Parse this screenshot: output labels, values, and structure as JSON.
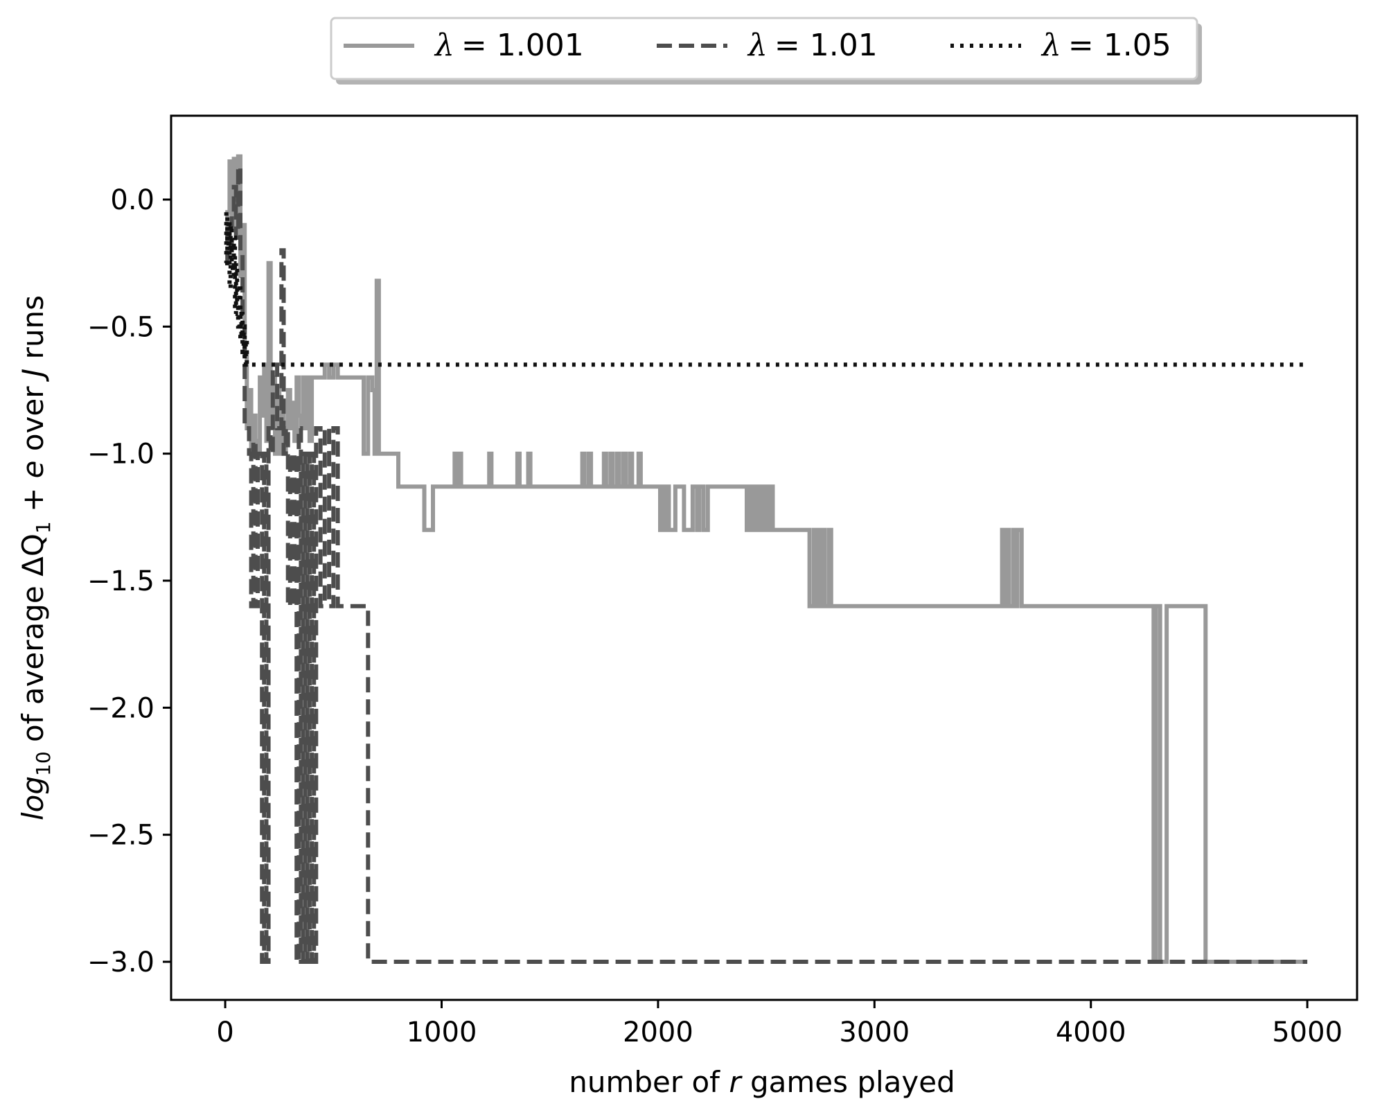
{
  "chart_data": {
    "type": "line",
    "xlabel": "number of r games played",
    "xlabel_parts": [
      "number of ",
      "r",
      " games played"
    ],
    "ylabel": "log10 of average ΔQ1 + e over J runs",
    "ylabel_parts": {
      "log": "log",
      "sub10": "10",
      "mid": " of average ",
      "dq": "ΔQ",
      "sub1": "1",
      "plus": " + ",
      "e": "e",
      "over": " over ",
      "J": "J",
      "runs": " runs"
    },
    "xlim": [
      -250,
      5230
    ],
    "ylim": [
      -3.15,
      0.33
    ],
    "xticks": [
      0,
      1000,
      2000,
      3000,
      4000,
      5000
    ],
    "yticks": [
      0.0,
      -0.5,
      -1.0,
      -1.5,
      -2.0,
      -2.5,
      -3.0
    ],
    "ytick_labels": [
      "0.0",
      "−0.5",
      "−1.0",
      "−1.5",
      "−2.0",
      "−2.5",
      "−3.0"
    ],
    "grid": false,
    "legend_placement": "top-center-outside",
    "series": [
      {
        "name": "λ = 1.001",
        "lambda_symbol": "λ",
        "lambda_value": "= 1.001",
        "color": "#999999",
        "style": "solid",
        "x": [
          0,
          10,
          20,
          30,
          40,
          50,
          60,
          70,
          80,
          90,
          100,
          110,
          120,
          130,
          140,
          150,
          160,
          170,
          180,
          190,
          200,
          210,
          220,
          230,
          240,
          250,
          260,
          270,
          280,
          290,
          300,
          310,
          320,
          330,
          340,
          350,
          360,
          370,
          380,
          390,
          400,
          420,
          440,
          460,
          480,
          500,
          520,
          540,
          560,
          600,
          640,
          660,
          680,
          690,
          700,
          710,
          720,
          740,
          760,
          780,
          800,
          820,
          840,
          880,
          920,
          940,
          960,
          980,
          1000,
          1060,
          1070,
          1080,
          1090,
          1100,
          1220,
          1230,
          1240,
          1350,
          1360,
          1400,
          1410,
          1650,
          1660,
          1680,
          1690,
          1750,
          1760,
          1780,
          1790,
          1810,
          1820,
          1840,
          1850,
          1870,
          1880,
          1910,
          1920,
          1980,
          2000,
          2010,
          2020,
          2030,
          2040,
          2050,
          2060,
          2080,
          2120,
          2160,
          2180,
          2190,
          2210,
          2220,
          2230,
          2300,
          2410,
          2420,
          2430,
          2440,
          2450,
          2460,
          2470,
          2480,
          2490,
          2500,
          2510,
          2520,
          2530,
          2540,
          2560,
          2640,
          2660,
          2700,
          2720,
          2730,
          2740,
          2750,
          2760,
          2770,
          2790,
          2800,
          2820,
          2860,
          3000,
          3300,
          3580,
          3590,
          3600,
          3610,
          3620,
          3640,
          3650,
          3660,
          3680,
          3700,
          3900,
          4200,
          4290,
          4300,
          4320,
          4340,
          4350,
          4360,
          4400,
          4520,
          4530,
          4540,
          4700,
          4900,
          5000
        ],
        "y": [
          -0.15,
          -0.05,
          0.15,
          -0.1,
          0.16,
          0.0,
          0.17,
          -0.3,
          -0.1,
          -0.6,
          -0.9,
          -0.75,
          -1.0,
          -0.85,
          -0.95,
          -1.0,
          -0.7,
          -0.85,
          -0.65,
          -0.95,
          -0.25,
          -0.9,
          -0.7,
          -1.0,
          -0.75,
          -1.0,
          -0.8,
          -1.0,
          -0.9,
          -0.75,
          -0.9,
          -0.8,
          -0.95,
          -0.7,
          -0.85,
          -0.9,
          -0.7,
          -0.9,
          -0.7,
          -0.95,
          -0.7,
          -0.7,
          -0.7,
          -0.65,
          -0.7,
          -0.65,
          -0.7,
          -0.7,
          -0.7,
          -0.7,
          -1.0,
          -0.7,
          -0.75,
          -1.0,
          -0.32,
          -1.0,
          -1.0,
          -1.0,
          -1.0,
          -1.0,
          -1.13,
          -1.13,
          -1.13,
          -1.13,
          -1.3,
          -1.3,
          -1.13,
          -1.13,
          -1.13,
          -1.0,
          -1.13,
          -1.0,
          -1.13,
          -1.13,
          -1.0,
          -1.13,
          -1.13,
          -1.0,
          -1.13,
          -1.0,
          -1.13,
          -1.0,
          -1.13,
          -1.0,
          -1.13,
          -1.0,
          -1.13,
          -1.0,
          -1.13,
          -1.0,
          -1.13,
          -1.0,
          -1.13,
          -1.0,
          -1.13,
          -1.0,
          -1.13,
          -1.13,
          -1.13,
          -1.3,
          -1.13,
          -1.3,
          -1.13,
          -1.3,
          -1.3,
          -1.13,
          -1.3,
          -1.13,
          -1.3,
          -1.13,
          -1.3,
          -1.3,
          -1.13,
          -1.13,
          -1.3,
          -1.13,
          -1.3,
          -1.13,
          -1.3,
          -1.13,
          -1.3,
          -1.13,
          -1.3,
          -1.13,
          -1.3,
          -1.13,
          -1.3,
          -1.3,
          -1.3,
          -1.3,
          -1.3,
          -1.6,
          -1.3,
          -1.6,
          -1.3,
          -1.6,
          -1.3,
          -1.6,
          -1.3,
          -1.6,
          -1.6,
          -1.6,
          -1.6,
          -1.6,
          -1.6,
          -1.3,
          -1.6,
          -1.3,
          -1.6,
          -1.3,
          -1.6,
          -1.3,
          -1.6,
          -1.6,
          -1.6,
          -1.6,
          -3.0,
          -1.6,
          -3.0,
          -3.0,
          -1.6,
          -1.6,
          -1.6,
          -1.6,
          -3.0,
          -3.0,
          -3.0,
          -3.0,
          -3.0
        ]
      },
      {
        "name": "λ = 1.01",
        "lambda_symbol": "λ",
        "lambda_value": "= 1.01",
        "color": "#4d4d4d",
        "style": "dashed",
        "x": [
          0,
          10,
          20,
          30,
          40,
          50,
          60,
          70,
          80,
          90,
          100,
          110,
          120,
          130,
          140,
          150,
          160,
          170,
          180,
          190,
          200,
          210,
          220,
          240,
          260,
          270,
          280,
          290,
          300,
          310,
          320,
          330,
          340,
          350,
          360,
          370,
          380,
          390,
          400,
          410,
          420,
          440,
          460,
          480,
          500,
          520,
          560,
          600,
          640,
          650,
          660,
          700,
          1000,
          2000,
          3000,
          4000,
          5000
        ],
        "y": [
          -0.25,
          -0.1,
          -0.2,
          -0.05,
          0.05,
          -0.15,
          0.13,
          -0.2,
          -0.5,
          -0.9,
          -0.9,
          -1.0,
          -1.6,
          -0.95,
          -1.6,
          -1.0,
          -1.0,
          -3.0,
          -1.0,
          -3.0,
          -0.9,
          -1.0,
          -0.65,
          -0.9,
          -0.2,
          -1.0,
          -0.9,
          -1.6,
          -1.0,
          -1.6,
          -1.0,
          -3.0,
          -0.9,
          -3.0,
          -1.0,
          -3.0,
          -1.0,
          -3.0,
          -1.0,
          -3.0,
          -0.9,
          -1.6,
          -0.9,
          -1.6,
          -0.9,
          -1.6,
          -1.6,
          -1.6,
          -1.6,
          -1.6,
          -3.0,
          -3.0,
          -3.0,
          -3.0,
          -3.0,
          -3.0,
          -3.0
        ]
      },
      {
        "name": "λ = 1.05",
        "lambda_symbol": "λ",
        "lambda_value": "= 1.05",
        "color": "#111111",
        "style": "dotted",
        "x": [
          0,
          5,
          10,
          15,
          20,
          25,
          30,
          35,
          40,
          45,
          50,
          55,
          60,
          65,
          70,
          75,
          80,
          85,
          90,
          95,
          100,
          110,
          120,
          140,
          200,
          500,
          1000,
          2000,
          3000,
          4000,
          5000
        ],
        "y": [
          -0.25,
          -0.05,
          -0.2,
          -0.08,
          -0.35,
          -0.1,
          -0.25,
          -0.3,
          -0.15,
          -0.45,
          -0.25,
          -0.4,
          -0.5,
          -0.35,
          -0.55,
          -0.45,
          -0.6,
          -0.5,
          -0.65,
          -0.55,
          -0.65,
          -0.65,
          -0.65,
          -0.65,
          -0.65,
          -0.65,
          -0.65,
          -0.65,
          -0.65,
          -0.65,
          -0.65
        ]
      }
    ]
  }
}
